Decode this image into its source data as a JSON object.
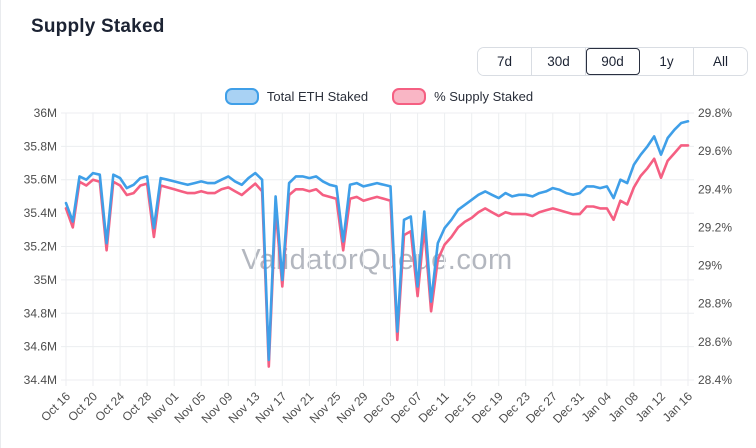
{
  "header": {
    "title": "Supply Staked"
  },
  "controls": {
    "ranges": [
      {
        "label": "7d",
        "selected": false
      },
      {
        "label": "30d",
        "selected": false
      },
      {
        "label": "90d",
        "selected": true
      },
      {
        "label": "1y",
        "selected": false
      },
      {
        "label": "All",
        "selected": false
      }
    ]
  },
  "legend": [
    {
      "label": "Total ETH Staked",
      "line_color": "#3f9fe8",
      "fill": "#a9d2f4"
    },
    {
      "label": "% Supply Staked",
      "line_color": "#f55f82",
      "fill": "#f9b6c5"
    }
  ],
  "watermark": "ValidatorQueue.com",
  "chart_data": {
    "type": "line",
    "x": [
      "Oct 16",
      "Oct 17",
      "Oct 18",
      "Oct 19",
      "Oct 20",
      "Oct 21",
      "Oct 22",
      "Oct 23",
      "Oct 24",
      "Oct 25",
      "Oct 26",
      "Oct 27",
      "Oct 28",
      "Oct 29",
      "Oct 30",
      "Oct 31",
      "Nov 01",
      "Nov 02",
      "Nov 03",
      "Nov 04",
      "Nov 05",
      "Nov 06",
      "Nov 07",
      "Nov 08",
      "Nov 09",
      "Nov 10",
      "Nov 11",
      "Nov 12",
      "Nov 13",
      "Nov 14",
      "Nov 15",
      "Nov 16",
      "Nov 17",
      "Nov 18",
      "Nov 19",
      "Nov 20",
      "Nov 21",
      "Nov 22",
      "Nov 23",
      "Nov 24",
      "Nov 25",
      "Nov 26",
      "Nov 27",
      "Nov 28",
      "Nov 29",
      "Nov 30",
      "Dec 01",
      "Dec 02",
      "Dec 03",
      "Dec 04",
      "Dec 05",
      "Dec 06",
      "Dec 07",
      "Dec 08",
      "Dec 09",
      "Dec 10",
      "Dec 11",
      "Dec 12",
      "Dec 13",
      "Dec 14",
      "Dec 15",
      "Dec 16",
      "Dec 17",
      "Dec 18",
      "Dec 19",
      "Dec 20",
      "Dec 21",
      "Dec 22",
      "Dec 23",
      "Dec 24",
      "Dec 25",
      "Dec 26",
      "Dec 27",
      "Dec 28",
      "Dec 29",
      "Dec 30",
      "Dec 31",
      "Jan 01",
      "Jan 02",
      "Jan 03",
      "Jan 04",
      "Jan 05",
      "Jan 06",
      "Jan 07",
      "Jan 08",
      "Jan 09",
      "Jan 10",
      "Jan 11",
      "Jan 12",
      "Jan 13",
      "Jan 14",
      "Jan 15",
      "Jan 16"
    ],
    "x_tick_every": 4,
    "x_tick_labels": [
      "Oct 16",
      "Oct 20",
      "Oct 24",
      "Oct 28",
      "Nov 01",
      "Nov 05",
      "Nov 09",
      "Nov 13",
      "Nov 17",
      "Nov 21",
      "Nov 25",
      "Nov 29",
      "Dec 03",
      "Dec 07",
      "Dec 11",
      "Dec 15",
      "Dec 19",
      "Dec 23",
      "Dec 27",
      "Dec 31",
      "Jan 04",
      "Jan 08",
      "Jan 12",
      "Jan 16"
    ],
    "series": [
      {
        "name": "Total ETH Staked",
        "axis": "left",
        "color": "#3f9fe8",
        "unit": "M ETH",
        "values": [
          35.46,
          35.35,
          35.62,
          35.6,
          35.64,
          35.63,
          35.22,
          35.63,
          35.61,
          35.55,
          35.57,
          35.61,
          35.62,
          35.31,
          35.61,
          35.6,
          35.59,
          35.58,
          35.57,
          35.58,
          35.59,
          35.58,
          35.58,
          35.6,
          35.62,
          35.59,
          35.57,
          35.61,
          35.64,
          35.6,
          34.52,
          35.5,
          35.0,
          35.58,
          35.62,
          35.62,
          35.61,
          35.62,
          35.59,
          35.57,
          35.56,
          35.23,
          35.57,
          35.58,
          35.56,
          35.57,
          35.58,
          35.57,
          35.56,
          34.69,
          35.36,
          35.38,
          34.96,
          35.41,
          34.87,
          35.22,
          35.31,
          35.36,
          35.42,
          35.45,
          35.48,
          35.51,
          35.53,
          35.51,
          35.49,
          35.52,
          35.5,
          35.51,
          35.51,
          35.5,
          35.52,
          35.53,
          35.55,
          35.54,
          35.52,
          35.51,
          35.52,
          35.56,
          35.56,
          35.55,
          35.56,
          35.49,
          35.6,
          35.58,
          35.69,
          35.75,
          35.8,
          35.86,
          35.75,
          35.85,
          35.9,
          35.94,
          35.95
        ]
      },
      {
        "name": "% Supply Staked",
        "axis": "right",
        "color": "#f55f82",
        "unit": "%",
        "values": [
          29.3,
          29.2,
          29.44,
          29.42,
          29.45,
          29.44,
          29.08,
          29.44,
          29.42,
          29.37,
          29.38,
          29.42,
          29.43,
          29.15,
          29.42,
          29.41,
          29.4,
          29.39,
          29.38,
          29.38,
          29.39,
          29.38,
          29.38,
          29.4,
          29.41,
          29.39,
          29.37,
          29.4,
          29.43,
          29.39,
          28.47,
          29.3,
          28.89,
          29.37,
          29.4,
          29.4,
          29.39,
          29.4,
          29.37,
          29.36,
          29.35,
          29.08,
          29.35,
          29.36,
          29.34,
          29.35,
          29.36,
          29.35,
          29.34,
          28.61,
          29.16,
          29.18,
          28.84,
          29.2,
          28.76,
          29.03,
          29.11,
          29.15,
          29.2,
          29.23,
          29.25,
          29.28,
          29.3,
          29.28,
          29.26,
          29.28,
          29.27,
          29.27,
          29.27,
          29.26,
          29.28,
          29.29,
          29.3,
          29.29,
          29.28,
          29.27,
          29.27,
          29.31,
          29.31,
          29.3,
          29.3,
          29.24,
          29.34,
          29.32,
          29.41,
          29.47,
          29.51,
          29.56,
          29.46,
          29.55,
          29.59,
          29.63,
          29.63
        ]
      }
    ],
    "left_axis": {
      "min": 34.4,
      "max": 36.0,
      "step": 0.2,
      "suffix": "M",
      "tick_labels": [
        "34.4M",
        "34.6M",
        "34.8M",
        "35M",
        "35.2M",
        "35.4M",
        "35.6M",
        "35.8M",
        "36M"
      ]
    },
    "right_axis": {
      "min": 28.4,
      "max": 29.8,
      "step": 0.2,
      "suffix": "%",
      "tick_labels": [
        "28.4%",
        "28.6%",
        "28.8%",
        "29%",
        "29.2%",
        "29.4%",
        "29.6%",
        "29.8%"
      ]
    },
    "grid": true,
    "legend_position": "top"
  }
}
